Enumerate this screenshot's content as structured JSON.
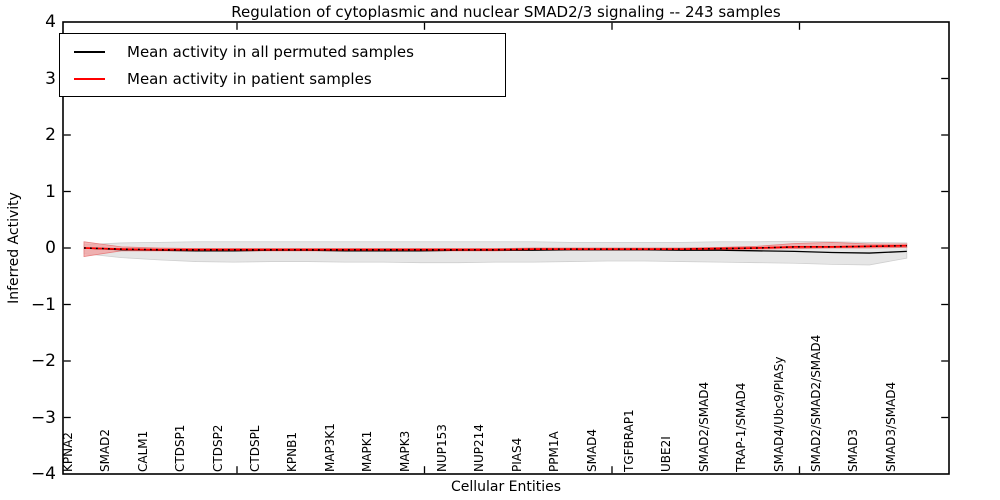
{
  "title": "Regulation of cytoplasmic and nuclear SMAD2/3 signaling -- 243 samples",
  "axes": {
    "ylabel": "Inferred Activity",
    "xlabel": "Cellular Entities",
    "y_tick_labels": [
      "4",
      "3",
      "2",
      "1",
      "0",
      "−1",
      "−2",
      "−3",
      "−4"
    ]
  },
  "legend": {
    "items": [
      {
        "label": "Mean activity in all permuted samples",
        "color": "#000000"
      },
      {
        "label": "Mean activity in patient samples",
        "color": "#ff0000"
      }
    ]
  },
  "chart_data": {
    "type": "line",
    "title": "Regulation of cytoplasmic and nuclear SMAD2/3 signaling -- 243 samples",
    "xlabel": "Cellular Entities",
    "ylabel": "Inferred Activity",
    "ylim": [
      -4,
      4
    ],
    "grid": false,
    "legend_position": "upper left",
    "categories": [
      "KPNA2",
      "SMAD2",
      "CALM1",
      "CTDSP1",
      "CTDSP2",
      "CTDSPL",
      "KPNB1",
      "MAP3K1",
      "MAPK1",
      "MAPK3",
      "NUP153",
      "NUP214",
      "PIAS4",
      "PPM1A",
      "SMAD4",
      "TGFBRAP1",
      "UBE2I",
      "SMAD2/SMAD4",
      "TRAP-1/SMAD4",
      "SMAD4/Ubc9/PIASy",
      "SMAD2/SMAD2/SMAD4",
      "SMAD3",
      "SMAD3/SMAD4"
    ],
    "series": [
      {
        "name": "Mean activity in all permuted samples",
        "color": "#000000",
        "style": "solid",
        "values": [
          0.0,
          -0.03,
          -0.04,
          -0.05,
          -0.05,
          -0.04,
          -0.04,
          -0.05,
          -0.05,
          -0.05,
          -0.04,
          -0.04,
          -0.04,
          -0.03,
          -0.03,
          -0.03,
          -0.04,
          -0.04,
          -0.05,
          -0.06,
          -0.08,
          -0.09,
          -0.06
        ]
      },
      {
        "name": "Mean activity in patient samples",
        "color": "#ff0000",
        "style": "solid",
        "values": [
          0.0,
          -0.02,
          -0.03,
          -0.03,
          -0.03,
          -0.03,
          -0.03,
          -0.03,
          -0.03,
          -0.03,
          -0.03,
          -0.03,
          -0.02,
          -0.02,
          -0.02,
          -0.02,
          -0.02,
          -0.01,
          0.0,
          0.02,
          0.02,
          0.03,
          0.04
        ]
      }
    ],
    "bands": [
      {
        "name": "permuted-samples-range",
        "fill": "#e3e3e3",
        "edge": "#cfcfcf",
        "opacity": 0.9,
        "upper": [
          0.06,
          0.09,
          0.1,
          0.11,
          0.11,
          0.11,
          0.11,
          0.11,
          0.11,
          0.11,
          0.11,
          0.11,
          0.11,
          0.1,
          0.1,
          0.1,
          0.1,
          0.11,
          0.11,
          0.12,
          0.11,
          0.1,
          0.09
        ],
        "lower": [
          -0.1,
          -0.17,
          -0.21,
          -0.24,
          -0.25,
          -0.24,
          -0.24,
          -0.25,
          -0.25,
          -0.26,
          -0.26,
          -0.25,
          -0.25,
          -0.24,
          -0.23,
          -0.23,
          -0.24,
          -0.25,
          -0.26,
          -0.27,
          -0.29,
          -0.3,
          -0.18
        ]
      },
      {
        "name": "patient-samples-range",
        "fill": "#f19e9e",
        "edge": "#e77f7f",
        "opacity": 0.75,
        "upper": [
          0.11,
          0.02,
          0.0,
          -0.01,
          -0.01,
          -0.01,
          -0.01,
          -0.01,
          -0.01,
          -0.01,
          -0.01,
          -0.01,
          0.0,
          0.0,
          0.0,
          0.0,
          0.0,
          0.01,
          0.03,
          0.08,
          0.1,
          0.07,
          0.07
        ],
        "lower": [
          -0.15,
          -0.05,
          -0.05,
          -0.05,
          -0.05,
          -0.05,
          -0.05,
          -0.05,
          -0.05,
          -0.05,
          -0.05,
          -0.05,
          -0.04,
          -0.04,
          -0.04,
          -0.04,
          -0.04,
          -0.03,
          -0.02,
          -0.01,
          0.0,
          0.0,
          0.01
        ]
      }
    ],
    "y_tick_labels": [
      "4",
      "3",
      "2",
      "1",
      "0",
      "−1",
      "−2",
      "−3",
      "−4"
    ]
  }
}
